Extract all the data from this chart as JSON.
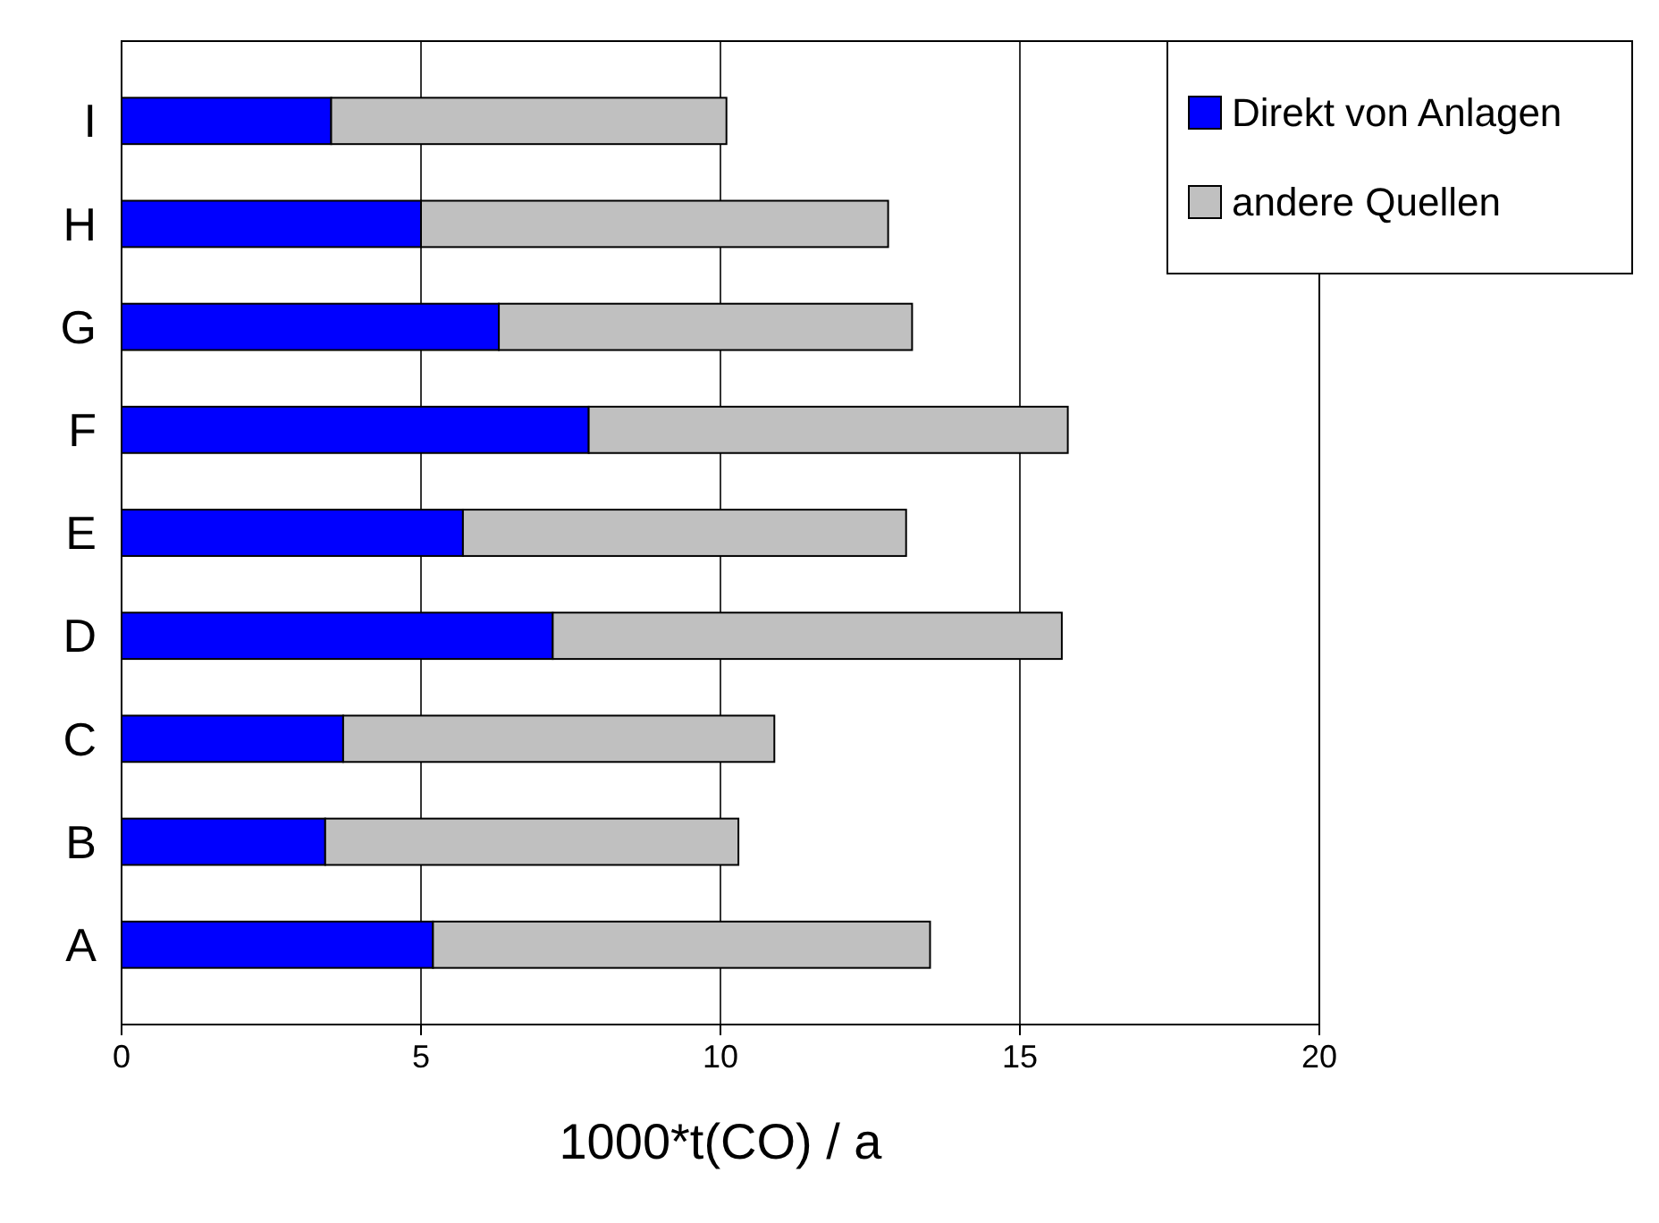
{
  "chart_data": {
    "type": "bar",
    "orientation": "horizontal",
    "stacked": true,
    "xlabel": "1000*t(CO) / a",
    "categories": [
      "I",
      "H",
      "G",
      "F",
      "E",
      "D",
      "C",
      "B",
      "A"
    ],
    "series": [
      {
        "name": "Direkt von Anlagen",
        "color": "#0000ff",
        "values": [
          3.5,
          5.0,
          6.3,
          7.8,
          5.7,
          7.2,
          3.7,
          3.4,
          5.2
        ]
      },
      {
        "name": "andere Quellen",
        "color": "#c0c0c0",
        "values": [
          6.6,
          7.8,
          6.9,
          8.0,
          7.4,
          8.5,
          7.2,
          6.9,
          8.3
        ]
      }
    ],
    "xlim": [
      0,
      20
    ],
    "xticks": [
      0,
      5,
      10,
      15,
      20
    ],
    "grid": "x",
    "legend": "top right"
  }
}
